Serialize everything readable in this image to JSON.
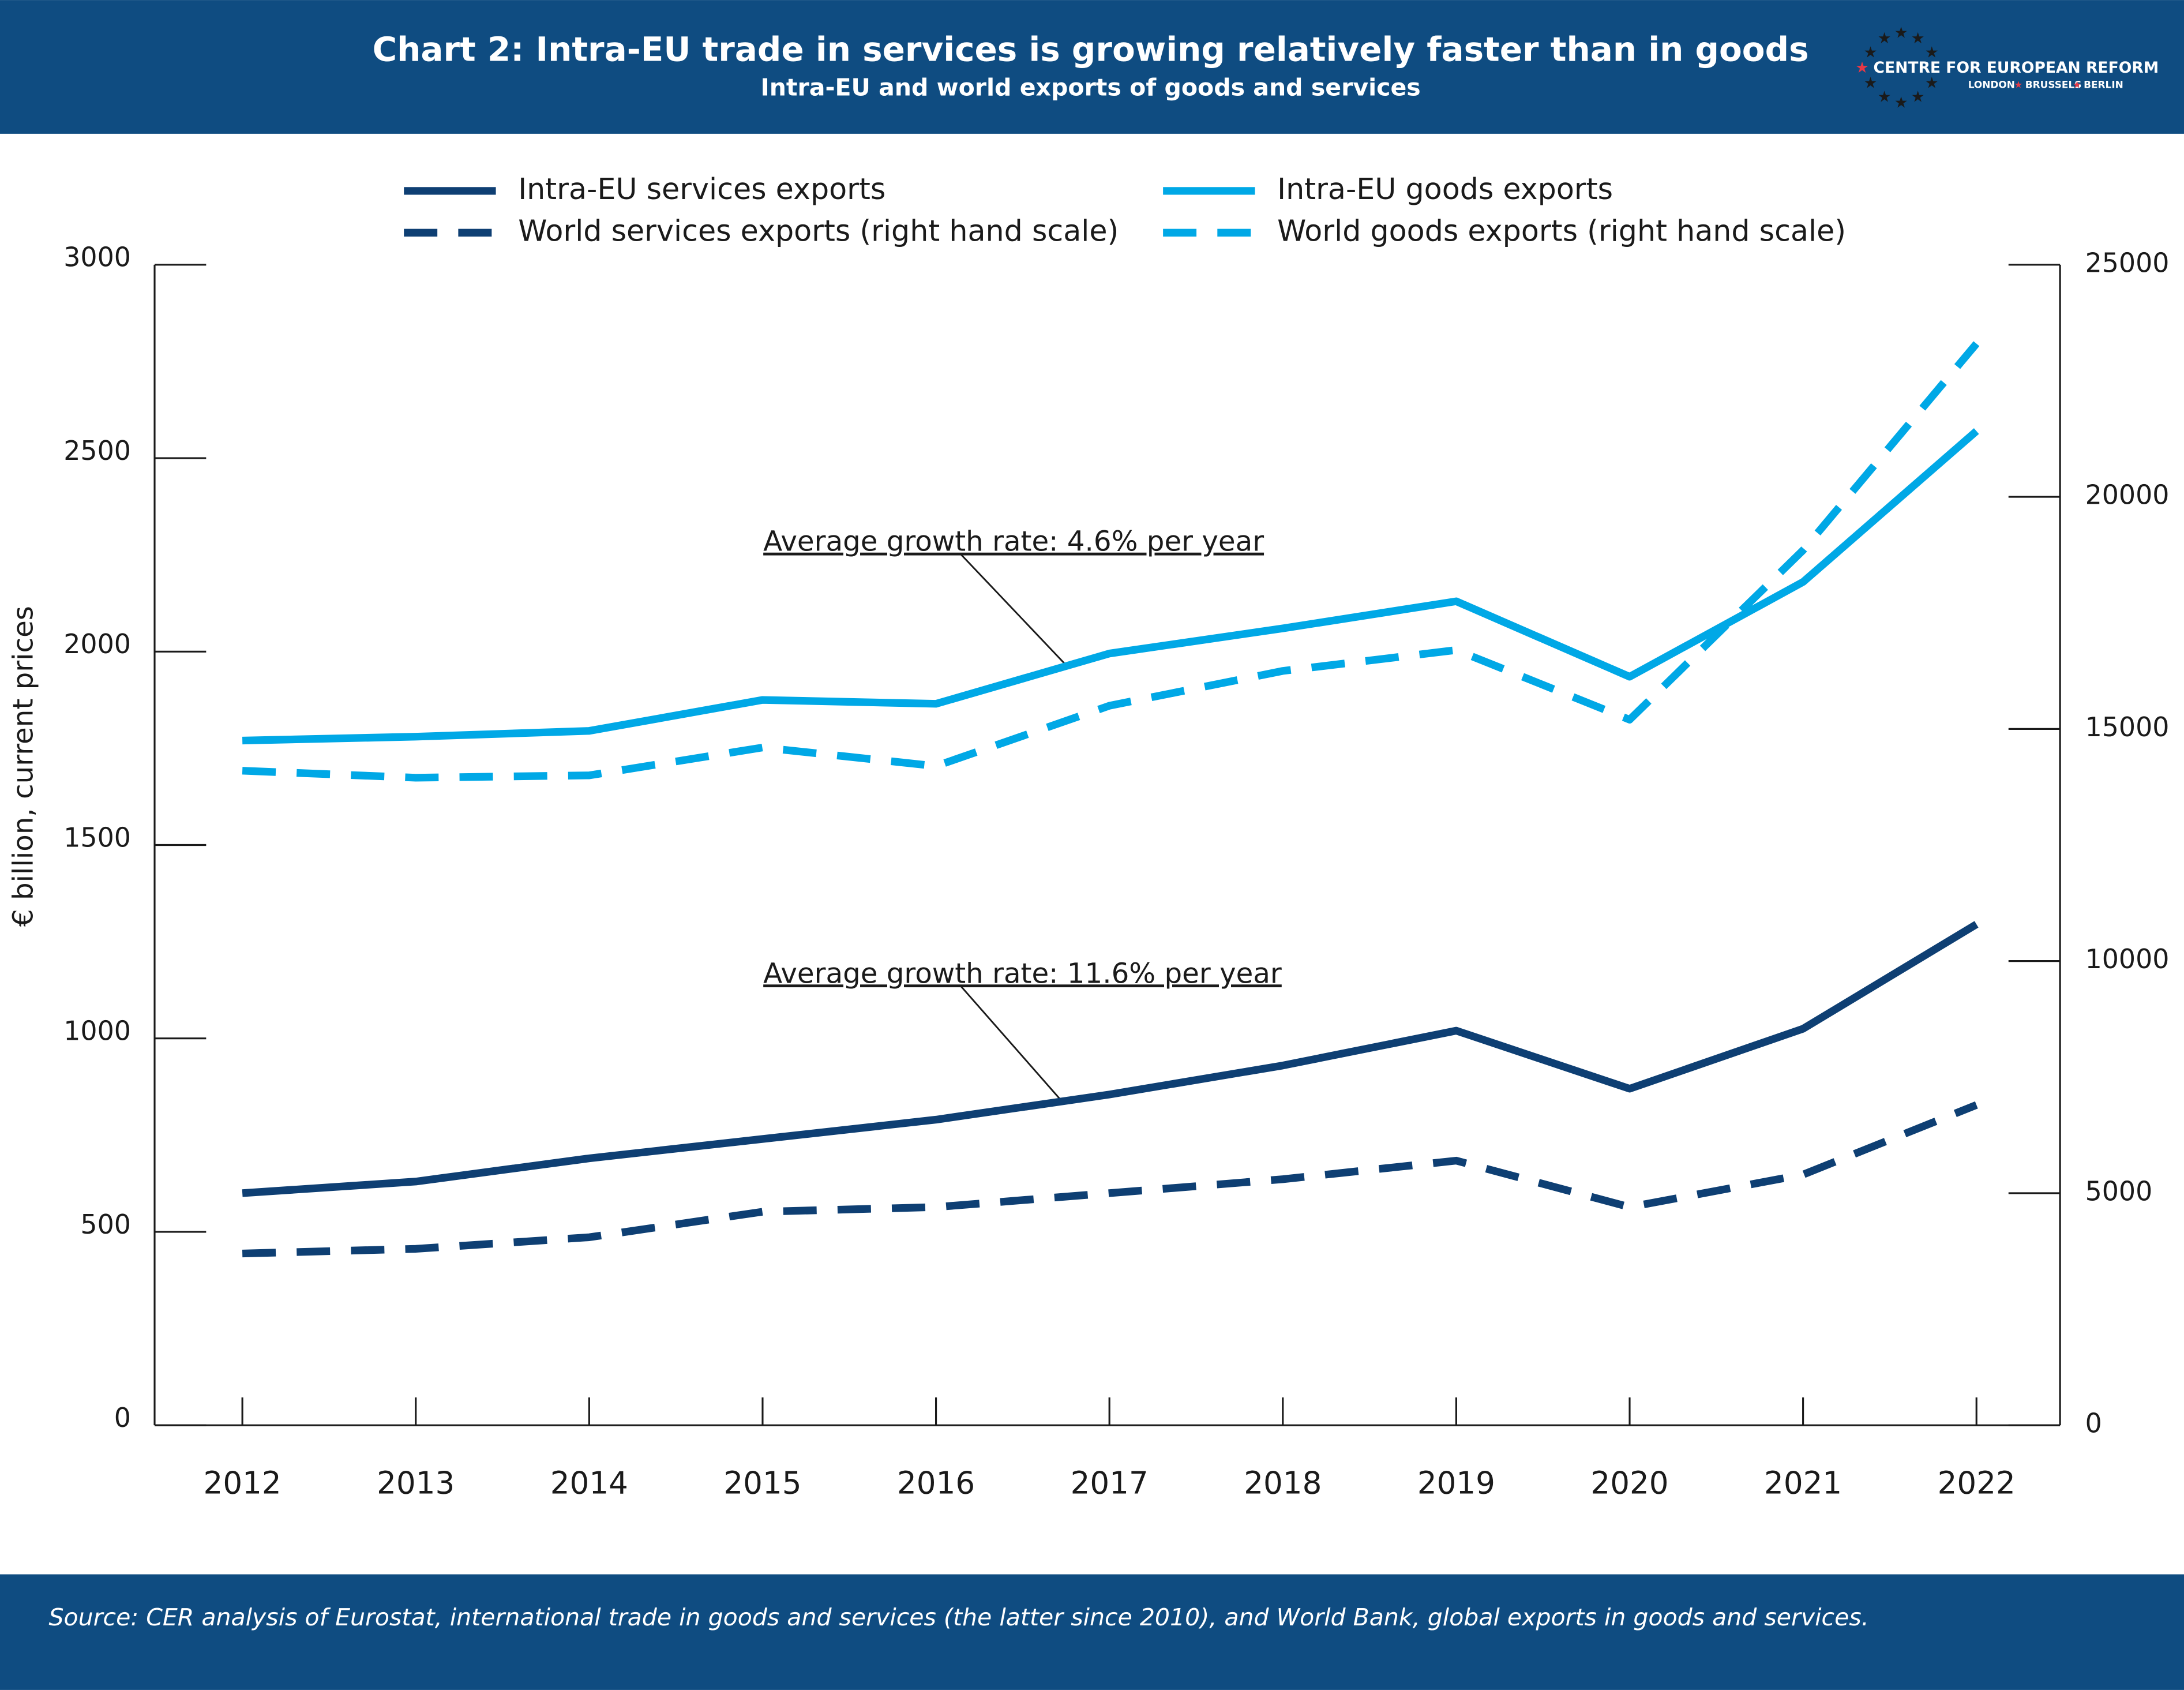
{
  "chart_data": {
    "type": "line",
    "title": "Chart 2: Intra-EU trade in services is growing relatively faster than in goods",
    "subtitle": "Intra-EU and world exports of goods and services",
    "y_label": "€ billion, current prices",
    "source": "Source: CER analysis of Eurostat, international trade in goods and services (the latter since 2010), and World Bank, global exports in goods and services.",
    "logo": {
      "name": "CENTRE FOR EUROPEAN REFORM",
      "cities": [
        "LONDON",
        "BRUSSELS",
        "BERLIN"
      ]
    },
    "categories": [
      "2012",
      "2013",
      "2014",
      "2015",
      "2016",
      "2017",
      "2018",
      "2019",
      "2020",
      "2021",
      "2022"
    ],
    "series": [
      {
        "name": "Intra-EU services exports",
        "color": "#0e3f73",
        "dash": false,
        "axis": "y",
        "values": [
          600,
          630,
          690,
          740,
          790,
          855,
          930,
          1020,
          870,
          1025,
          1295
        ]
      },
      {
        "name": "Intra-EU goods exports",
        "color": "#00a8e6",
        "dash": false,
        "axis": "y",
        "values": [
          1770,
          1780,
          1795,
          1875,
          1865,
          1995,
          2060,
          2130,
          1935,
          2180,
          2570
        ]
      },
      {
        "name": "World services exports (right hand scale)",
        "color": "#0e3f73",
        "dash": true,
        "axis": "y2",
        "values": [
          3700,
          3800,
          4050,
          4600,
          4700,
          5000,
          5300,
          5700,
          4700,
          5400,
          6900
        ]
      },
      {
        "name": "World goods exports (right hand scale)",
        "color": "#00a8e6",
        "dash": true,
        "axis": "y2",
        "values": [
          14100,
          13950,
          14000,
          14600,
          14200,
          15500,
          16250,
          16700,
          15200,
          18850,
          23300
        ]
      }
    ],
    "annotations": [
      {
        "text": "Average growth rate: 4.6% per year"
      },
      {
        "text": "Average growth rate: 11.6% per year"
      }
    ],
    "ylim": [
      0,
      3000
    ],
    "yticks": [
      0,
      500,
      1000,
      1500,
      2000,
      2500,
      3000
    ],
    "y2lim": [
      0,
      25000
    ],
    "y2ticks": [
      0,
      5000,
      10000,
      15000,
      20000,
      25000
    ],
    "grid": false,
    "legend": "top"
  }
}
